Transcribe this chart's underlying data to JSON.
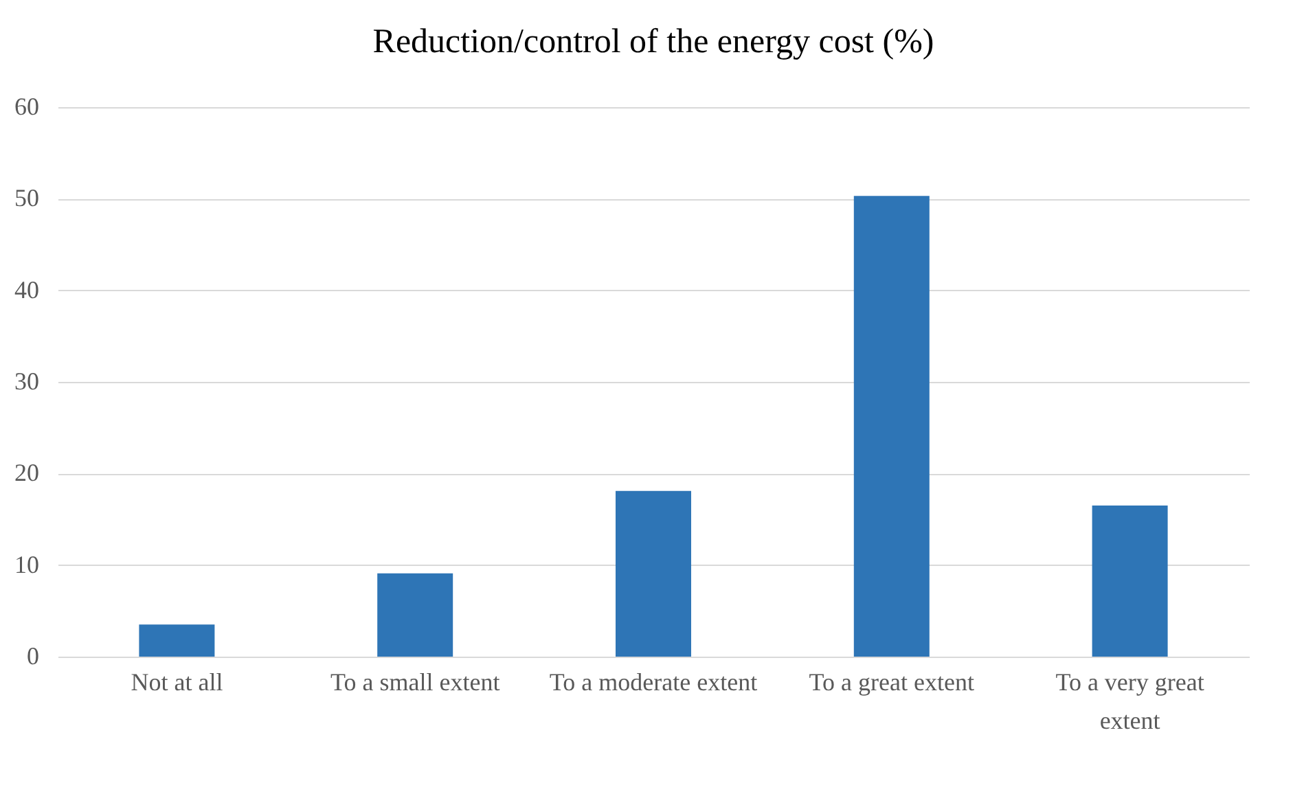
{
  "chart_data": {
    "type": "bar",
    "title": "Reduction/control of the energy cost (%)",
    "categories": [
      "Not at all",
      "To a small extent",
      "To a moderate extent",
      "To a great extent",
      "To a very great extent"
    ],
    "values": [
      3.5,
      9.1,
      18.1,
      50.3,
      16.5
    ],
    "color": "#2e75b6",
    "ylim": [
      0,
      60
    ],
    "yticks": [
      0,
      10,
      20,
      30,
      40,
      50,
      60
    ],
    "grid": "y"
  }
}
